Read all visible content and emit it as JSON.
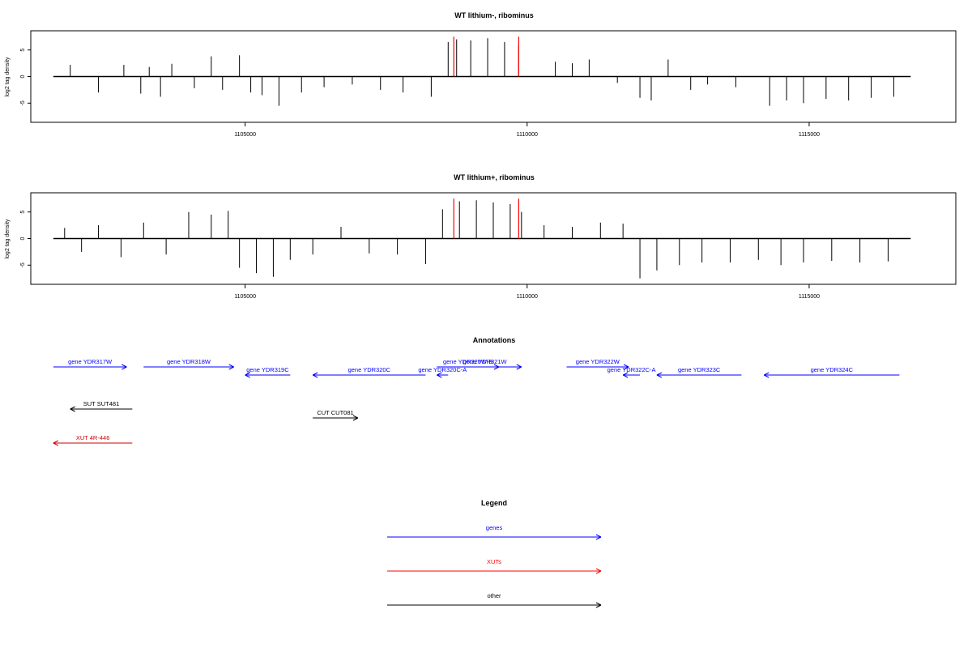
{
  "chart_data": [
    {
      "type": "bar",
      "title": "WT lithium-, ribominus",
      "ylabel": "log2 tag density",
      "xlim": [
        1101200,
        1117600
      ],
      "ylim": [
        -8,
        8
      ],
      "xticks": [
        "1105000",
        "1110000",
        "1115000"
      ],
      "yticks": [
        "-5",
        "0",
        "5"
      ],
      "series": [
        {
          "color": "#000000",
          "x": [
            1101900,
            1102400,
            1102850,
            1103150,
            1103300,
            1103500,
            1103700,
            1104100,
            1104400,
            1104600,
            1104900,
            1105100,
            1105300,
            1105600,
            1106000,
            1106400,
            1106900,
            1107400,
            1107800,
            1108300,
            1108600,
            1108750,
            1109000,
            1109300,
            1109600,
            1109850,
            1110500,
            1110800,
            1111100,
            1111600,
            1112000,
            1112200,
            1112500,
            1112900,
            1113200,
            1113700,
            1114300,
            1114600,
            1114900,
            1115300,
            1115700,
            1116100,
            1116500
          ],
          "values": [
            2.2,
            -3.0,
            2.2,
            -3.2,
            1.8,
            -3.8,
            2.4,
            -2.2,
            3.8,
            -2.5,
            4.0,
            -3.0,
            -3.5,
            -5.5,
            -3.0,
            -2.0,
            -1.5,
            -2.5,
            -3.0,
            -3.8,
            6.5,
            7.0,
            6.8,
            7.2,
            6.5,
            6.0,
            2.8,
            2.5,
            3.2,
            -1.2,
            -4.0,
            -4.5,
            3.2,
            -2.5,
            -1.5,
            -2.0,
            -5.5,
            -4.5,
            -5.0,
            -4.2,
            -4.5,
            -4.0,
            -3.8
          ]
        },
        {
          "color": "#ff0000",
          "x": [
            1108700,
            1109850
          ],
          "values": [
            7.5,
            7.5
          ]
        }
      ]
    },
    {
      "type": "bar",
      "title": "WT lithium+, ribominus",
      "ylabel": "log2 tag density",
      "xlim": [
        1101200,
        1117600
      ],
      "ylim": [
        -8,
        8
      ],
      "xticks": [
        "1105000",
        "1110000",
        "1115000"
      ],
      "yticks": [
        "-5",
        "0",
        "5"
      ],
      "series": [
        {
          "color": "#000000",
          "x": [
            1101800,
            1102100,
            1102400,
            1102800,
            1103200,
            1103600,
            1104000,
            1104400,
            1104700,
            1104900,
            1105200,
            1105500,
            1105800,
            1106200,
            1106700,
            1107200,
            1107700,
            1108200,
            1108500,
            1108800,
            1109100,
            1109400,
            1109700,
            1109900,
            1110300,
            1110800,
            1111300,
            1111700,
            1112000,
            1112300,
            1112700,
            1113100,
            1113600,
            1114100,
            1114500,
            1114900,
            1115400,
            1115900,
            1116400
          ],
          "values": [
            2.0,
            -2.5,
            2.5,
            -3.5,
            3.0,
            -3.0,
            5.0,
            4.5,
            5.2,
            -5.5,
            -6.5,
            -7.2,
            -4.0,
            -3.0,
            2.2,
            -2.8,
            -3.0,
            -4.8,
            5.5,
            7.0,
            7.2,
            6.8,
            6.5,
            5.0,
            2.5,
            2.2,
            3.0,
            2.8,
            -7.5,
            -6.0,
            -5.0,
            -4.5,
            -4.5,
            -4.0,
            -5.0,
            -4.5,
            -4.2,
            -4.5,
            -4.3
          ]
        },
        {
          "color": "#ff0000",
          "x": [
            1108700,
            1109850
          ],
          "values": [
            7.5,
            7.5
          ]
        }
      ]
    }
  ],
  "annotations": {
    "title": "Annotations",
    "items": [
      {
        "label": "gene YDR317W",
        "color": "#0000ff",
        "x0": 1101600,
        "x1": 1102900,
        "direction": "right",
        "track": 0
      },
      {
        "label": "gene YDR318W",
        "color": "#0000ff",
        "x0": 1103200,
        "x1": 1104800,
        "direction": "right",
        "track": 0
      },
      {
        "label": "gene YDR319C",
        "color": "#0000ff",
        "x0": 1105000,
        "x1": 1105800,
        "direction": "left",
        "track": 1
      },
      {
        "label": "gene YDR320C",
        "color": "#0000ff",
        "x0": 1106200,
        "x1": 1108200,
        "direction": "left",
        "track": 1
      },
      {
        "label": "gene YDR320W-B",
        "color": "#0000ff",
        "x0": 1108400,
        "x1": 1109500,
        "direction": "right",
        "track": 0
      },
      {
        "label": "gene YDR320C-A",
        "color": "#0000ff",
        "x0": 1108400,
        "x1": 1108600,
        "direction": "left",
        "track": 1
      },
      {
        "label": "gene YDR321W",
        "color": "#0000ff",
        "x0": 1108600,
        "x1": 1109900,
        "direction": "right",
        "track": 0
      },
      {
        "label": "gene YDR322W",
        "color": "#0000ff",
        "x0": 1110700,
        "x1": 1111800,
        "direction": "right",
        "track": 0
      },
      {
        "label": "gene YDR322C-A",
        "color": "#0000ff",
        "x0": 1111700,
        "x1": 1112000,
        "direction": "left",
        "track": 1
      },
      {
        "label": "gene YDR323C",
        "color": "#0000ff",
        "x0": 1112300,
        "x1": 1113800,
        "direction": "left",
        "track": 1
      },
      {
        "label": "gene YDR324C",
        "color": "#0000ff",
        "x0": 1114200,
        "x1": 1116600,
        "direction": "left",
        "track": 1
      },
      {
        "label": "SUT SUT481",
        "color": "#000000",
        "x0": 1101900,
        "x1": 1103000,
        "direction": "left",
        "track": 2
      },
      {
        "label": "CUT CUT081",
        "color": "#000000",
        "x0": 1106200,
        "x1": 1107000,
        "direction": "right",
        "track": 3
      },
      {
        "label": "XUT 4R-446",
        "color": "#cc0000",
        "x0": 1101600,
        "x1": 1103000,
        "direction": "left",
        "track": 4
      }
    ]
  },
  "legend": {
    "title": "Legend",
    "items": [
      {
        "label": "genes",
        "color": "#0000ff"
      },
      {
        "label": "XUTs",
        "color": "#ff0000"
      },
      {
        "label": "other",
        "color": "#000000"
      }
    ]
  }
}
